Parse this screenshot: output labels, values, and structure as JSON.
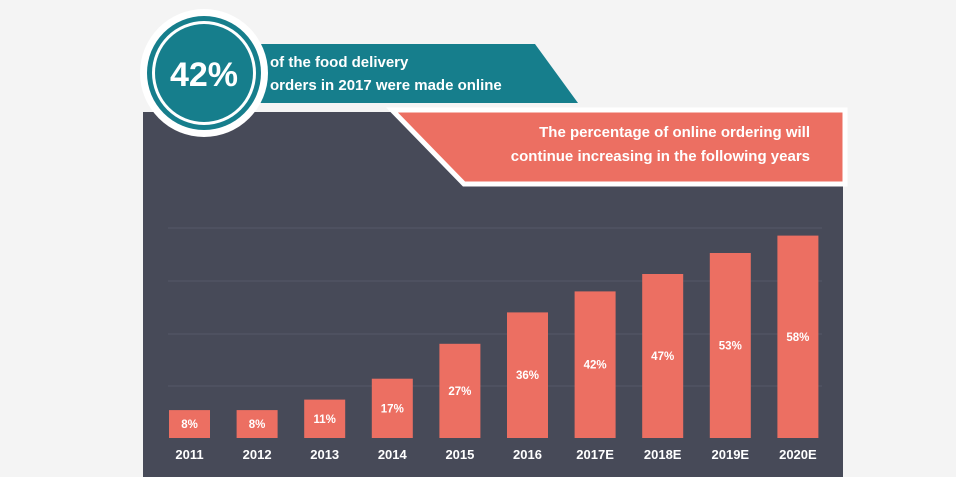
{
  "header": {
    "stat_value": "42%",
    "stat_line1": "of the food delivery",
    "stat_line2": "orders in 2017 were made online",
    "callout_line1": "The percentage of online ordering will",
    "callout_line2": "continue increasing in the following years"
  },
  "colors": {
    "panel": "#474a58",
    "bar": "#ec6f62",
    "teal": "#167e8c",
    "callout": "#ec6f62",
    "background": "#f4f4f4"
  },
  "chart_data": {
    "type": "bar",
    "categories": [
      "2011",
      "2012",
      "2013",
      "2014",
      "2015",
      "2016",
      "2017E",
      "2018E",
      "2019E",
      "2020E"
    ],
    "values": [
      8,
      8,
      11,
      17,
      27,
      36,
      42,
      47,
      53,
      58
    ],
    "data_labels": [
      "8%",
      "8%",
      "11%",
      "17%",
      "27%",
      "36%",
      "42%",
      "47%",
      "53%",
      "58%"
    ],
    "title": "",
    "xlabel": "",
    "ylabel": "",
    "ylim": [
      0,
      60
    ],
    "grid": true,
    "legend": "none"
  }
}
